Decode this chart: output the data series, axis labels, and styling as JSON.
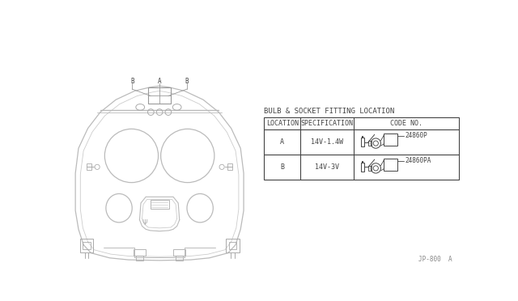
{
  "title": "BULB & SOCKET FITTING LOCATION",
  "table_headers": [
    "LOCATION",
    "SPECIFICATION",
    "CODE NO."
  ],
  "rows": [
    {
      "loc": "A",
      "spec": "14V-1.4W",
      "code": "24860P"
    },
    {
      "loc": "B",
      "spec": "14V-3V",
      "code": "24860PA"
    }
  ],
  "footer": "JP-800  A",
  "label_A": "A",
  "label_B": "B",
  "lc": "#aaaaaa",
  "dc": "#888888",
  "black": "#444444",
  "font_size_title": 6.5,
  "font_size_table": 6.0,
  "font_size_small": 5.5
}
